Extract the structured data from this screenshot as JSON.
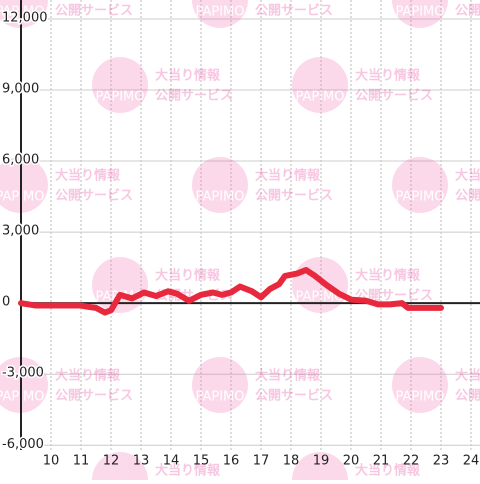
{
  "chart_data": {
    "type": "line",
    "x": [
      9,
      9.5,
      11,
      11.2,
      11.5,
      11.8,
      12.0,
      12.3,
      12.7,
      13.1,
      13.5,
      13.9,
      14.2,
      14.6,
      15.0,
      15.4,
      15.7,
      16.0,
      16.3,
      16.7,
      17.0,
      17.3,
      17.6,
      17.8,
      18.2,
      18.5,
      18.8,
      19.2,
      19.6,
      20.0,
      20.5,
      20.9,
      21.3,
      21.7,
      21.9,
      22.5,
      23.0
    ],
    "series": [
      {
        "color": "#e8283c",
        "values": [
          0,
          -100,
          -100,
          -150,
          -200,
          -400,
          -300,
          350,
          200,
          450,
          300,
          500,
          400,
          100,
          350,
          450,
          350,
          450,
          700,
          500,
          250,
          600,
          800,
          1150,
          1250,
          1400,
          1150,
          750,
          400,
          150,
          100,
          -50,
          -50,
          0,
          -200,
          -200,
          -200
        ]
      }
    ],
    "xlim": [
      9,
      24.3
    ],
    "xticks": [
      10,
      11,
      12,
      13,
      14,
      15,
      16,
      17,
      18,
      19,
      20,
      21,
      22,
      23,
      24
    ],
    "ylim": [
      -6200,
      12800
    ],
    "yticks": [
      {
        "value": -6000,
        "label": "-6,000"
      },
      {
        "value": -3000,
        "label": "-3,000"
      },
      0,
      {
        "value": 3000,
        "label": "3,000"
      },
      {
        "value": 6000,
        "label": "6,000"
      },
      {
        "value": 9000,
        "label": "9,000"
      },
      {
        "value": 12000,
        "label": "12,000"
      }
    ],
    "grid": true
  },
  "watermark": {
    "line1": "大当り情報",
    "line2": "公開サービス",
    "logo": "PAPIMO"
  }
}
